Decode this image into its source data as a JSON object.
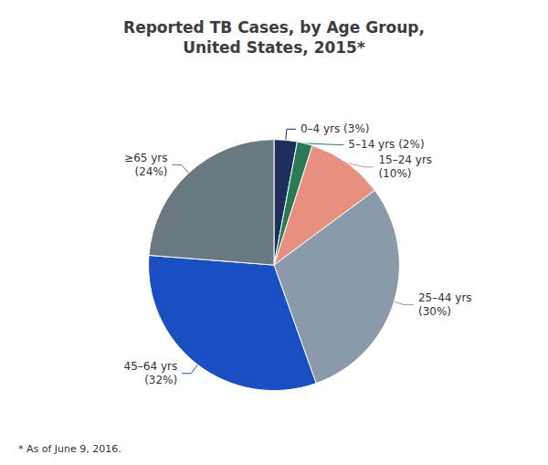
{
  "chart_data": {
    "type": "pie",
    "title": "Reported TB Cases, by Age Group,\nUnited States, 2015*",
    "categories": [
      "0–4 yrs (3%)",
      "5–14 yrs (2%)",
      "15–24 yrs\n(10%)",
      "25–44 yrs\n(30%)",
      "45–64 yrs\n(32%)",
      "≥65 yrs\n(24%)"
    ],
    "values": [
      3,
      2,
      10,
      30,
      32,
      24
    ],
    "colors": [
      "#1e2f5c",
      "#2a7a56",
      "#e89080",
      "#8a9aaa",
      "#1a4fc4",
      "#6a7880"
    ],
    "annotations": [
      "* As of June 9, 2016."
    ]
  }
}
